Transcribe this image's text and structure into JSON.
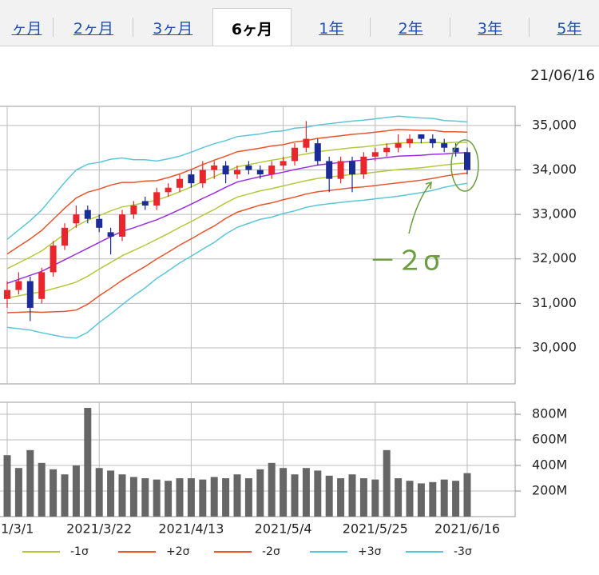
{
  "tabs": [
    "ヶ月",
    "2ヶ月",
    "3ヶ月",
    "6ヶ月",
    "1年",
    "2年",
    "3年",
    "5年"
  ],
  "active_tab": 3,
  "date": "21/06/16",
  "chart_data": {
    "type": "candlestick",
    "annotation": "－２σ",
    "categories": [
      "1/3/1",
      null,
      null,
      null,
      null,
      null,
      null,
      null,
      "2021/3/22",
      null,
      null,
      null,
      null,
      null,
      null,
      null,
      "2021/4/13",
      null,
      null,
      null,
      null,
      null,
      null,
      null,
      "2021/5/4",
      null,
      null,
      null,
      null,
      null,
      null,
      null,
      "2021/5/25",
      null,
      null,
      null,
      null,
      null,
      null,
      null,
      "2021/6/16"
    ],
    "open": [
      31100,
      31300,
      31500,
      31100,
      31700,
      32300,
      32800,
      33100,
      32900,
      32600,
      32500,
      33000,
      33300,
      33200,
      33500,
      33600,
      33900,
      33700,
      34000,
      34100,
      33900,
      34100,
      34000,
      33900,
      34100,
      34200,
      34500,
      34600,
      34200,
      33800,
      34200,
      33900,
      34300,
      34400,
      34500,
      34600,
      34800,
      34700,
      34600,
      34500,
      34400
    ],
    "high": [
      31500,
      31700,
      31600,
      31800,
      32400,
      32800,
      33200,
      33200,
      33000,
      32700,
      33100,
      33300,
      33400,
      33600,
      33700,
      33900,
      34000,
      34200,
      34200,
      34200,
      34100,
      34200,
      34100,
      34200,
      34300,
      34600,
      35100,
      34700,
      34300,
      34300,
      34300,
      34400,
      34500,
      34600,
      34800,
      34800,
      34800,
      34800,
      34700,
      34600,
      34500
    ],
    "low": [
      30900,
      31200,
      30600,
      31000,
      31600,
      32200,
      32700,
      32800,
      32600,
      32100,
      32400,
      32900,
      33100,
      33100,
      33400,
      33500,
      33600,
      33600,
      33800,
      33700,
      33800,
      33900,
      33800,
      33800,
      34000,
      34100,
      34400,
      34100,
      33500,
      33700,
      33500,
      33800,
      34200,
      34300,
      34400,
      34500,
      34600,
      34500,
      34400,
      34300,
      33900
    ],
    "close": [
      31300,
      31500,
      30900,
      31700,
      32300,
      32700,
      33000,
      32900,
      32700,
      32500,
      33000,
      33200,
      33200,
      33500,
      33600,
      33800,
      33700,
      34000,
      34100,
      33900,
      34000,
      34000,
      33900,
      34100,
      34200,
      34500,
      34700,
      34200,
      33800,
      34200,
      33900,
      34300,
      34400,
      34500,
      34600,
      34700,
      34700,
      34600,
      34500,
      34400,
      34000
    ],
    "up_color": "#e8262c",
    "down_color": "#1c2c96",
    "ylim": [
      29190,
      35430
    ],
    "yticks": [
      {
        "value": 30000,
        "label": "30,000"
      },
      {
        "value": 31000,
        "label": "31,000"
      },
      {
        "value": 32000,
        "label": "32,000"
      },
      {
        "value": 33000,
        "label": "33,000"
      },
      {
        "value": 34000,
        "label": "34,000"
      },
      {
        "value": 35000,
        "label": "35,000"
      }
    ],
    "grid": true,
    "series": [
      {
        "color": "#9a2ee0",
        "values": [
          31450,
          31540,
          31630,
          31720,
          31850,
          31980,
          32110,
          32240,
          32370,
          32500,
          32620,
          32700,
          32790,
          32880,
          32990,
          33110,
          33230,
          33360,
          33480,
          33610,
          33730,
          33790,
          33850,
          33900,
          33950,
          34010,
          34060,
          34110,
          34140,
          34170,
          34200,
          34220,
          34250,
          34280,
          34310,
          34320,
          34330,
          34350,
          34360,
          34380,
          34390
        ]
      },
      {
        "color": "#b5c83c",
        "values": [
          31780,
          31910,
          32040,
          32180,
          32370,
          32560,
          32740,
          32870,
          32970,
          33080,
          33170,
          33210,
          33270,
          33320,
          33410,
          33510,
          33620,
          33740,
          33850,
          33960,
          34070,
          34120,
          34170,
          34220,
          34260,
          34320,
          34360,
          34410,
          34440,
          34470,
          34500,
          34520,
          34550,
          34580,
          34610,
          34610,
          34610,
          34620,
          34610,
          34620,
          34620
        ]
      },
      {
        "name": "-1σ",
        "color": "#b5c83c",
        "values": [
          31120,
          31170,
          31220,
          31260,
          31330,
          31400,
          31480,
          31610,
          31770,
          31920,
          32070,
          32190,
          32310,
          32440,
          32570,
          32710,
          32840,
          32980,
          33110,
          33260,
          33390,
          33460,
          33530,
          33580,
          33640,
          33700,
          33760,
          33810,
          33840,
          33870,
          33900,
          33920,
          33950,
          33980,
          34010,
          34030,
          34050,
          34080,
          34110,
          34140,
          34160
        ]
      },
      {
        "name": "+2σ",
        "color": "#e8552c",
        "values": [
          32110,
          32280,
          32450,
          32640,
          32890,
          33140,
          33370,
          33500,
          33570,
          33660,
          33720,
          33720,
          33750,
          33760,
          33830,
          33910,
          34010,
          34120,
          34220,
          34310,
          34410,
          34450,
          34490,
          34540,
          34570,
          34630,
          34660,
          34710,
          34740,
          34770,
          34800,
          34820,
          34850,
          34880,
          34910,
          34900,
          34890,
          34890,
          34860,
          34860,
          34850
        ]
      },
      {
        "name": "-2σ",
        "color": "#e8552c",
        "values": [
          30790,
          30800,
          30810,
          30800,
          30810,
          30820,
          30850,
          30980,
          31170,
          31340,
          31520,
          31680,
          31830,
          32000,
          32150,
          32310,
          32450,
          32600,
          32740,
          32910,
          33050,
          33130,
          33210,
          33260,
          33330,
          33390,
          33460,
          33510,
          33540,
          33570,
          33600,
          33620,
          33650,
          33680,
          33710,
          33740,
          33770,
          33810,
          33860,
          33900,
          33930
        ]
      },
      {
        "name": "+3σ",
        "color": "#5cc6d8",
        "values": [
          32440,
          32650,
          32860,
          33100,
          33410,
          33720,
          34000,
          34130,
          34170,
          34240,
          34270,
          34230,
          34230,
          34200,
          34250,
          34310,
          34400,
          34500,
          34590,
          34660,
          34750,
          34780,
          34810,
          34860,
          34880,
          34940,
          34960,
          35010,
          35040,
          35070,
          35100,
          35120,
          35150,
          35180,
          35210,
          35190,
          35170,
          35160,
          35110,
          35100,
          35080
        ]
      },
      {
        "name": "-3σ",
        "color": "#5cc6d8",
        "values": [
          30460,
          30430,
          30400,
          30340,
          30290,
          30240,
          30220,
          30350,
          30570,
          30760,
          30970,
          31170,
          31350,
          31560,
          31730,
          31910,
          32060,
          32220,
          32370,
          32560,
          32710,
          32800,
          32890,
          32940,
          33020,
          33080,
          33160,
          33210,
          33240,
          33270,
          33300,
          33320,
          33350,
          33380,
          33410,
          33450,
          33490,
          33540,
          33610,
          33660,
          33700
        ]
      }
    ],
    "volume": {
      "color": "#666666",
      "values": [
        480,
        380,
        520,
        420,
        370,
        330,
        400,
        850,
        380,
        360,
        330,
        310,
        300,
        290,
        280,
        300,
        300,
        290,
        310,
        300,
        330,
        300,
        370,
        420,
        380,
        330,
        380,
        360,
        320,
        300,
        330,
        300,
        290,
        520,
        300,
        280,
        260,
        270,
        290,
        280,
        340
      ],
      "ylim": [
        0,
        894
      ],
      "yticks": [
        {
          "value": 200,
          "label": "200M"
        },
        {
          "value": 400,
          "label": "400M"
        },
        {
          "value": 600,
          "label": "600M"
        },
        {
          "value": 800,
          "label": "800M"
        }
      ]
    }
  }
}
